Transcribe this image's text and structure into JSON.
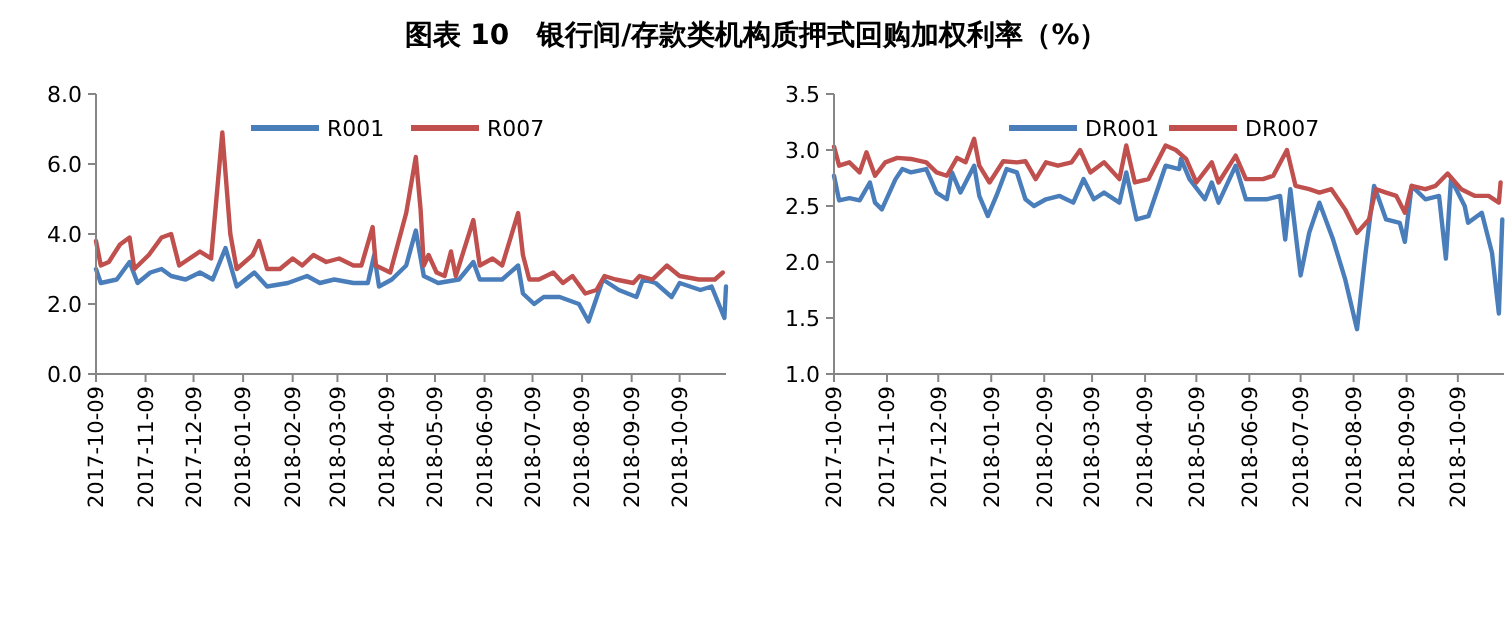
{
  "chart_data": [
    {
      "type": "line",
      "title": "图表 10　银行间/存款类机构质押式回购加权利率（%）",
      "legend": "top",
      "grid": false,
      "marker": "none",
      "line_style": "solid",
      "xlim": [
        "2017-10-09",
        "2018-11-07"
      ],
      "xticks": [
        "2017-10-09",
        "2017-11-09",
        "2017-12-09",
        "2018-01-09",
        "2018-02-09",
        "2018-03-09",
        "2018-04-09",
        "2018-05-09",
        "2018-06-09",
        "2018-07-09",
        "2018-08-09",
        "2018-09-09",
        "2018-10-09"
      ],
      "ylim": [
        0,
        8
      ],
      "yticks": [
        {
          "value": 0,
          "label": "0.0"
        },
        {
          "value": 2,
          "label": "2.0"
        },
        {
          "value": 4,
          "label": "4.0"
        },
        {
          "value": 6,
          "label": "6.0"
        },
        {
          "value": 8,
          "label": "8.0"
        }
      ],
      "series": [
        {
          "name": "R001",
          "color": "#4a7ebb",
          "x": [
            "2017-10-09",
            "2017-10-12",
            "2017-10-22",
            "2017-10-30",
            "2017-11-04",
            "2017-11-12",
            "2017-11-19",
            "2017-11-25",
            "2017-12-04",
            "2017-12-13",
            "2017-12-21",
            "2017-12-29",
            "2018-01-05",
            "2018-01-16",
            "2018-01-24",
            "2018-02-06",
            "2018-02-18",
            "2018-02-26",
            "2018-03-07",
            "2018-03-19",
            "2018-03-28",
            "2018-04-01",
            "2018-04-04",
            "2018-04-12",
            "2018-04-21",
            "2018-04-27",
            "2018-05-02",
            "2018-05-11",
            "2018-05-24",
            "2018-06-02",
            "2018-06-06",
            "2018-06-20",
            "2018-06-30",
            "2018-07-03",
            "2018-07-10",
            "2018-07-16",
            "2018-07-26",
            "2018-08-07",
            "2018-08-13",
            "2018-08-22",
            "2018-09-01",
            "2018-09-12",
            "2018-09-16",
            "2018-09-24",
            "2018-10-04",
            "2018-10-09",
            "2018-10-22",
            "2018-10-29",
            "2018-11-06",
            "2018-11-07"
          ],
          "values": [
            3.0,
            2.6,
            2.7,
            3.2,
            2.6,
            2.9,
            3.0,
            2.8,
            2.7,
            2.9,
            2.7,
            3.6,
            2.5,
            2.9,
            2.5,
            2.6,
            2.8,
            2.6,
            2.7,
            2.6,
            2.6,
            3.4,
            2.5,
            2.7,
            3.1,
            4.1,
            2.8,
            2.6,
            2.7,
            3.2,
            2.7,
            2.7,
            3.1,
            2.3,
            2.0,
            2.2,
            2.2,
            2.0,
            1.5,
            2.7,
            2.4,
            2.2,
            2.7,
            2.6,
            2.2,
            2.6,
            2.4,
            2.5,
            1.6,
            2.5
          ]
        },
        {
          "name": "R007",
          "color": "#c0504d",
          "x": [
            "2017-10-09",
            "2017-10-12",
            "2017-10-17",
            "2017-10-24",
            "2017-10-30",
            "2017-11-02",
            "2017-11-11",
            "2017-11-19",
            "2017-11-25",
            "2017-11-30",
            "2017-12-13",
            "2017-12-20",
            "2017-12-27",
            "2018-01-01",
            "2018-01-05",
            "2018-01-15",
            "2018-01-19",
            "2018-01-24",
            "2018-02-01",
            "2018-02-09",
            "2018-02-15",
            "2018-02-22",
            "2018-03-02",
            "2018-03-10",
            "2018-03-19",
            "2018-03-24",
            "2018-03-31",
            "2018-04-02",
            "2018-04-11",
            "2018-04-21",
            "2018-04-27",
            "2018-04-30",
            "2018-05-02",
            "2018-05-05",
            "2018-05-10",
            "2018-05-15",
            "2018-05-19",
            "2018-05-22",
            "2018-06-02",
            "2018-06-06",
            "2018-06-14",
            "2018-06-20",
            "2018-06-30",
            "2018-07-03",
            "2018-07-07",
            "2018-07-13",
            "2018-07-22",
            "2018-07-28",
            "2018-08-03",
            "2018-08-11",
            "2018-08-18",
            "2018-08-23",
            "2018-08-30",
            "2018-09-10",
            "2018-09-14",
            "2018-09-22",
            "2018-10-01",
            "2018-10-09",
            "2018-10-21",
            "2018-10-31",
            "2018-11-05"
          ],
          "values": [
            3.8,
            3.1,
            3.2,
            3.7,
            3.9,
            3.0,
            3.4,
            3.9,
            4.0,
            3.1,
            3.5,
            3.3,
            6.9,
            4.0,
            3.0,
            3.4,
            3.8,
            3.0,
            3.0,
            3.3,
            3.1,
            3.4,
            3.2,
            3.3,
            3.1,
            3.1,
            4.2,
            3.1,
            2.9,
            4.6,
            6.2,
            4.7,
            3.1,
            3.4,
            2.9,
            2.8,
            3.5,
            2.8,
            4.4,
            3.1,
            3.3,
            3.1,
            4.6,
            3.4,
            2.7,
            2.7,
            2.9,
            2.6,
            2.8,
            2.3,
            2.4,
            2.8,
            2.7,
            2.6,
            2.8,
            2.7,
            3.1,
            2.8,
            2.7,
            2.7,
            2.9
          ]
        }
      ]
    },
    {
      "type": "line",
      "legend": "top",
      "grid": false,
      "marker": "none",
      "line_style": "solid",
      "xlim": [
        "2017-10-09",
        "2018-11-05"
      ],
      "xticks": [
        "2017-10-09",
        "2017-11-09",
        "2017-12-09",
        "2018-01-09",
        "2018-02-09",
        "2018-03-09",
        "2018-04-09",
        "2018-05-09",
        "2018-06-09",
        "2018-07-09",
        "2018-08-09",
        "2018-09-09",
        "2018-10-09"
      ],
      "ylim": [
        1,
        3.5
      ],
      "yticks": [
        {
          "value": 1,
          "label": "1.0"
        },
        {
          "value": 1.5,
          "label": "1.5"
        },
        {
          "value": 2,
          "label": "2.0"
        },
        {
          "value": 2.5,
          "label": "2.5"
        },
        {
          "value": 3,
          "label": "3.0"
        },
        {
          "value": 3.5,
          "label": "3.5"
        }
      ],
      "series": [
        {
          "name": "DR001",
          "color": "#4a7ebb",
          "x": [
            "2017-10-09",
            "2017-10-12",
            "2017-10-18",
            "2017-10-24",
            "2017-10-30",
            "2017-11-02",
            "2017-11-06",
            "2017-11-14",
            "2017-11-18",
            "2017-11-23",
            "2017-12-02",
            "2017-12-08",
            "2017-12-14",
            "2017-12-17",
            "2017-12-22",
            "2017-12-30",
            "2018-01-02",
            "2018-01-07",
            "2018-01-12",
            "2018-01-18",
            "2018-01-24",
            "2018-01-29",
            "2018-02-03",
            "2018-02-10",
            "2018-02-18",
            "2018-02-26",
            "2018-03-04",
            "2018-03-10",
            "2018-03-16",
            "2018-03-25",
            "2018-03-29",
            "2018-04-04",
            "2018-04-11",
            "2018-04-21",
            "2018-04-29",
            "2018-04-30",
            "2018-05-05",
            "2018-05-14",
            "2018-05-18",
            "2018-05-22",
            "2018-06-01",
            "2018-06-07",
            "2018-06-19",
            "2018-06-27",
            "2018-06-30",
            "2018-07-03",
            "2018-07-09",
            "2018-07-14",
            "2018-07-20",
            "2018-07-28",
            "2018-08-04",
            "2018-08-11",
            "2018-08-16",
            "2018-08-21",
            "2018-08-28",
            "2018-09-05",
            "2018-09-08",
            "2018-09-12",
            "2018-09-20",
            "2018-09-28",
            "2018-10-02",
            "2018-10-05",
            "2018-10-13",
            "2018-10-15",
            "2018-10-23",
            "2018-10-29",
            "2018-11-02",
            "2018-11-04"
          ],
          "values": [
            2.77,
            2.55,
            2.57,
            2.55,
            2.71,
            2.53,
            2.47,
            2.74,
            2.83,
            2.8,
            2.83,
            2.62,
            2.56,
            2.8,
            2.62,
            2.86,
            2.59,
            2.41,
            2.59,
            2.83,
            2.8,
            2.56,
            2.5,
            2.56,
            2.59,
            2.53,
            2.74,
            2.56,
            2.62,
            2.53,
            2.8,
            2.38,
            2.41,
            2.86,
            2.83,
            2.92,
            2.74,
            2.56,
            2.71,
            2.53,
            2.86,
            2.56,
            2.56,
            2.59,
            2.2,
            2.65,
            1.88,
            2.26,
            2.53,
            2.2,
            1.85,
            1.4,
            2.08,
            2.68,
            2.38,
            2.35,
            2.18,
            2.68,
            2.56,
            2.59,
            2.03,
            2.74,
            2.5,
            2.35,
            2.44,
            2.08,
            1.54,
            2.38
          ]
        },
        {
          "name": "DR007",
          "color": "#c0504d",
          "x": [
            "2017-10-09",
            "2017-10-12",
            "2017-10-18",
            "2017-10-24",
            "2017-10-28",
            "2017-11-02",
            "2017-11-08",
            "2017-11-15",
            "2017-11-23",
            "2017-12-02",
            "2017-12-08",
            "2017-12-14",
            "2017-12-20",
            "2017-12-25",
            "2017-12-30",
            "2018-01-02",
            "2018-01-08",
            "2018-01-16",
            "2018-01-24",
            "2018-01-29",
            "2018-02-04",
            "2018-02-10",
            "2018-02-17",
            "2018-02-25",
            "2018-03-02",
            "2018-03-08",
            "2018-03-16",
            "2018-03-25",
            "2018-03-29",
            "2018-04-03",
            "2018-04-11",
            "2018-04-21",
            "2018-04-27",
            "2018-05-03",
            "2018-05-09",
            "2018-05-18",
            "2018-05-22",
            "2018-06-01",
            "2018-06-07",
            "2018-06-17",
            "2018-06-23",
            "2018-07-01",
            "2018-07-06",
            "2018-07-14",
            "2018-07-20",
            "2018-07-27",
            "2018-08-04",
            "2018-08-11",
            "2018-08-18",
            "2018-08-22",
            "2018-08-28",
            "2018-09-03",
            "2018-09-08",
            "2018-09-12",
            "2018-09-20",
            "2018-09-26",
            "2018-10-03",
            "2018-10-11",
            "2018-10-19",
            "2018-10-27",
            "2018-11-02",
            "2018-11-03"
          ],
          "values": [
            3.03,
            2.86,
            2.89,
            2.8,
            2.98,
            2.77,
            2.89,
            2.93,
            2.92,
            2.89,
            2.8,
            2.77,
            2.93,
            2.89,
            3.1,
            2.86,
            2.71,
            2.9,
            2.89,
            2.9,
            2.74,
            2.89,
            2.86,
            2.89,
            3.0,
            2.8,
            2.89,
            2.74,
            3.04,
            2.71,
            2.74,
            3.04,
            3.0,
            2.92,
            2.71,
            2.89,
            2.71,
            2.95,
            2.74,
            2.74,
            2.77,
            3.0,
            2.68,
            2.65,
            2.62,
            2.65,
            2.47,
            2.26,
            2.38,
            2.65,
            2.62,
            2.59,
            2.44,
            2.68,
            2.65,
            2.68,
            2.79,
            2.65,
            2.59,
            2.59,
            2.53,
            2.71
          ]
        }
      ]
    }
  ]
}
